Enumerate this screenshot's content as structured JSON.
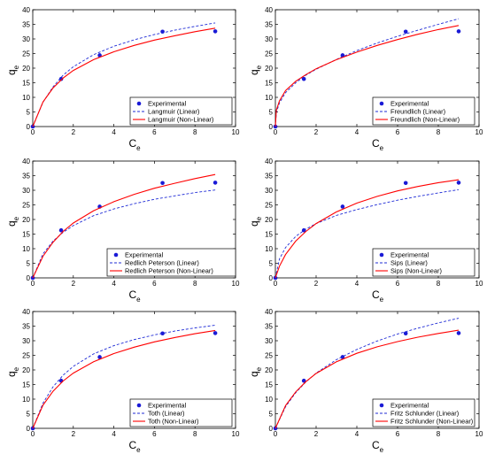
{
  "colors": {
    "experimental": "#1a1ad6",
    "linear": "#1f2bd6",
    "nonlinear": "#ff0000",
    "axes": "#000000"
  },
  "chart_data": [
    {
      "type": "line",
      "xlabel": "C",
      "xlabel_sub": "e",
      "ylabel": "q",
      "ylabel_sub": "e",
      "xlim": [
        0,
        10
      ],
      "ylim": [
        0,
        40
      ],
      "xticks": [
        0,
        2,
        4,
        6,
        8,
        10
      ],
      "yticks": [
        0,
        5,
        10,
        15,
        20,
        25,
        30,
        35,
        40
      ],
      "legend_position": "bottom-right",
      "series": [
        {
          "name": "Experimental",
          "kind": "marker",
          "x": [
            0,
            1.4,
            3.3,
            6.4,
            9.0
          ],
          "y": [
            0,
            16.3,
            24.4,
            32.5,
            32.6
          ]
        },
        {
          "name": "Langmuir (Linear)",
          "kind": "dashed",
          "x": [
            0,
            0.5,
            1,
            1.5,
            2,
            3,
            4,
            5,
            6,
            7,
            8,
            9
          ],
          "y": [
            0,
            8.3,
            13.6,
            17.6,
            20.5,
            24.6,
            27.5,
            29.7,
            31.5,
            33.0,
            34.3,
            35.5
          ]
        },
        {
          "name": "Langmuir (Non-Linear)",
          "kind": "solid",
          "x": [
            0,
            0.5,
            1,
            1.5,
            2,
            3,
            4,
            5,
            6,
            7,
            8,
            9
          ],
          "y": [
            0,
            8.4,
            13.2,
            16.6,
            19.2,
            22.9,
            25.6,
            27.8,
            29.6,
            31.1,
            32.5,
            33.7
          ]
        }
      ]
    },
    {
      "type": "line",
      "xlabel": "C",
      "xlabel_sub": "e",
      "ylabel": "q",
      "ylabel_sub": "e",
      "xlim": [
        0,
        10
      ],
      "ylim": [
        0,
        40
      ],
      "xticks": [
        0,
        2,
        4,
        6,
        8,
        10
      ],
      "yticks": [
        0,
        5,
        10,
        15,
        20,
        25,
        30,
        35,
        40
      ],
      "legend_position": "bottom-right",
      "series": [
        {
          "name": "Experimental",
          "kind": "marker",
          "x": [
            0,
            1.4,
            3.3,
            6.4,
            9.0
          ],
          "y": [
            0,
            16.3,
            24.4,
            32.5,
            32.6
          ]
        },
        {
          "name": "Freundlich (Linear)",
          "kind": "dashed",
          "x": [
            0,
            0.05,
            0.2,
            0.5,
            1,
            1.5,
            2,
            3,
            4,
            5,
            6,
            7,
            8,
            9
          ],
          "y": [
            0,
            4.8,
            8.1,
            11.6,
            15.0,
            17.6,
            19.6,
            23.0,
            26.0,
            28.6,
            30.9,
            33.0,
            35.0,
            36.9
          ]
        },
        {
          "name": "Freundlich (Non-Linear)",
          "kind": "solid",
          "x": [
            0,
            0.05,
            0.2,
            0.5,
            1,
            1.5,
            2,
            3,
            4,
            5,
            6,
            7,
            8,
            9
          ],
          "y": [
            0,
            5.6,
            8.8,
            12.3,
            15.5,
            17.8,
            19.8,
            22.9,
            25.5,
            27.8,
            29.8,
            31.6,
            33.2,
            34.6
          ]
        }
      ]
    },
    {
      "type": "line",
      "xlabel": "C",
      "xlabel_sub": "e",
      "ylabel": "q",
      "ylabel_sub": "e",
      "xlim": [
        0,
        10
      ],
      "ylim": [
        0,
        40
      ],
      "xticks": [
        0,
        2,
        4,
        6,
        8,
        10
      ],
      "yticks": [
        0,
        5,
        10,
        15,
        20,
        25,
        30,
        35,
        40
      ],
      "legend_position": "bottom-left",
      "series": [
        {
          "name": "Experimental",
          "kind": "marker",
          "x": [
            0,
            1.4,
            3.3,
            6.4,
            9.0
          ],
          "y": [
            0,
            16.3,
            24.4,
            32.5,
            32.6
          ]
        },
        {
          "name": "Redlich Peterson (Linear)",
          "kind": "dashed",
          "x": [
            0,
            0.5,
            1,
            1.5,
            2,
            3,
            4,
            5,
            6,
            7,
            8,
            9
          ],
          "y": [
            0,
            8.2,
            12.6,
            15.6,
            17.9,
            21.3,
            23.6,
            25.4,
            26.9,
            28.1,
            29.2,
            30.1
          ]
        },
        {
          "name": "Redlich Peterson (Non-Linear)",
          "kind": "solid",
          "x": [
            0,
            0.5,
            1,
            1.5,
            2,
            3,
            4,
            5,
            6,
            7,
            8,
            9
          ],
          "y": [
            0,
            7.4,
            12.2,
            15.9,
            18.8,
            23.0,
            26.1,
            28.6,
            30.7,
            32.4,
            34.0,
            35.4
          ]
        }
      ]
    },
    {
      "type": "line",
      "xlabel": "C",
      "xlabel_sub": "e",
      "ylabel": "q",
      "ylabel_sub": "e",
      "xlim": [
        0,
        10
      ],
      "ylim": [
        0,
        40
      ],
      "xticks": [
        0,
        2,
        4,
        6,
        8,
        10
      ],
      "yticks": [
        0,
        5,
        10,
        15,
        20,
        25,
        30,
        35,
        40
      ],
      "legend_position": "bottom-right",
      "series": [
        {
          "name": "Experimental",
          "kind": "marker",
          "x": [
            0,
            1.4,
            3.3,
            6.4,
            9.0
          ],
          "y": [
            0,
            16.3,
            24.4,
            32.5,
            32.6
          ]
        },
        {
          "name": "Sips (Linear)",
          "kind": "dashed",
          "x": [
            0,
            0.2,
            0.5,
            1,
            1.5,
            2,
            3,
            4,
            5,
            6,
            7,
            8,
            9
          ],
          "y": [
            0,
            6.5,
            10.4,
            14.2,
            16.7,
            18.6,
            21.4,
            23.4,
            25.1,
            26.6,
            27.9,
            29.1,
            30.2
          ]
        },
        {
          "name": "Sips (Non-Linear)",
          "kind": "solid",
          "x": [
            0,
            0.2,
            0.5,
            1,
            1.5,
            2,
            3,
            4,
            5,
            6,
            7,
            8,
            9
          ],
          "y": [
            0,
            4.0,
            8.0,
            12.6,
            15.9,
            18.6,
            22.6,
            25.6,
            27.9,
            29.8,
            31.3,
            32.6,
            33.6
          ]
        }
      ]
    },
    {
      "type": "line",
      "xlabel": "C",
      "xlabel_sub": "e",
      "ylabel": "q",
      "ylabel_sub": "e",
      "xlim": [
        0,
        10
      ],
      "ylim": [
        0,
        40
      ],
      "xticks": [
        0,
        2,
        4,
        6,
        8,
        10
      ],
      "yticks": [
        0,
        5,
        10,
        15,
        20,
        25,
        30,
        35,
        40
      ],
      "legend_position": "bottom-right",
      "series": [
        {
          "name": "Experimental",
          "kind": "marker",
          "x": [
            0,
            1.4,
            3.3,
            6.4,
            9.0
          ],
          "y": [
            0,
            16.3,
            24.4,
            32.5,
            32.6
          ]
        },
        {
          "name": "Toth (Linear)",
          "kind": "dashed",
          "x": [
            0,
            0.5,
            1,
            1.5,
            2,
            3,
            4,
            5,
            6,
            7,
            8,
            9
          ],
          "y": [
            0,
            8.6,
            14.2,
            18.2,
            21.2,
            25.5,
            28.3,
            30.4,
            32.0,
            33.3,
            34.4,
            35.3
          ]
        },
        {
          "name": "Toth (Non-Linear)",
          "kind": "solid",
          "x": [
            0,
            0.5,
            1,
            1.5,
            2,
            3,
            4,
            5,
            6,
            7,
            8,
            9
          ],
          "y": [
            0,
            7.9,
            12.7,
            16.2,
            18.9,
            22.8,
            25.6,
            27.8,
            29.6,
            31.1,
            32.4,
            33.5
          ]
        }
      ]
    },
    {
      "type": "line",
      "xlabel": "C",
      "xlabel_sub": "e",
      "ylabel": "q",
      "ylabel_sub": "e",
      "xlim": [
        0,
        10
      ],
      "ylim": [
        0,
        40
      ],
      "xticks": [
        0,
        2,
        4,
        6,
        8,
        10
      ],
      "yticks": [
        0,
        5,
        10,
        15,
        20,
        25,
        30,
        35,
        40
      ],
      "legend_position": "bottom-right",
      "series": [
        {
          "name": "Experimental",
          "kind": "marker",
          "x": [
            0,
            1.4,
            3.3,
            6.4,
            9.0
          ],
          "y": [
            0,
            16.3,
            24.4,
            32.5,
            32.6
          ]
        },
        {
          "name": "Fritz Schlunder (Linear)",
          "kind": "dashed",
          "x": [
            0,
            0.5,
            1,
            1.5,
            2,
            3,
            4,
            5,
            6,
            7,
            8,
            9
          ],
          "y": [
            0,
            7.4,
            12.2,
            15.9,
            18.9,
            23.5,
            27.0,
            29.9,
            32.3,
            34.3,
            36.1,
            37.7
          ]
        },
        {
          "name": "Fritz Schlunder (Non-Linear)",
          "kind": "solid",
          "x": [
            0,
            0.5,
            1,
            1.5,
            2,
            3,
            4,
            5,
            6,
            7,
            8,
            9
          ],
          "y": [
            0,
            7.8,
            12.5,
            16.0,
            18.8,
            22.8,
            25.7,
            27.9,
            29.7,
            31.2,
            32.5,
            33.6
          ]
        }
      ]
    }
  ]
}
